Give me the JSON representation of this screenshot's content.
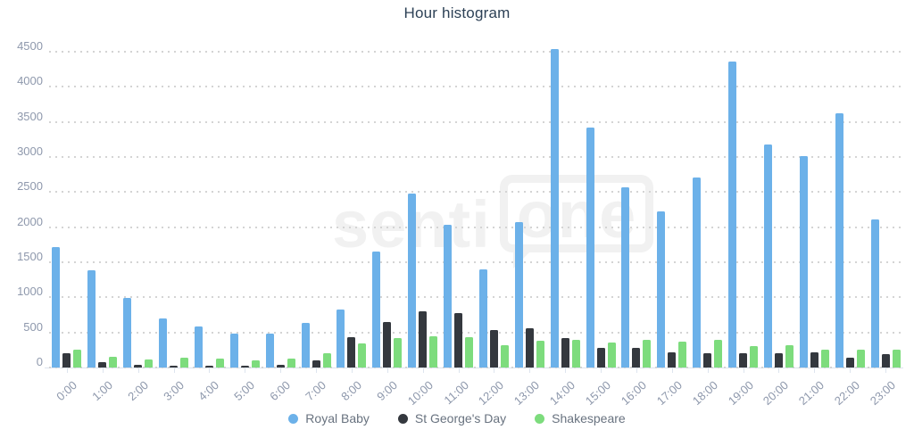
{
  "title": "Hour histogram",
  "watermark": {
    "left": "senti",
    "boxed": "one"
  },
  "colors": {
    "background": "#ffffff",
    "title_text": "#2d4156",
    "axis_text": "#8e98ac",
    "legend_text": "#68727f",
    "gridline": "#d4d4d4",
    "axis_line": "#dde4ee",
    "watermark": "#f1f1f1",
    "royal_baby": "#6cb1e9",
    "st_georges_day": "#34383e",
    "shakespeare": "#7ddc7d"
  },
  "chart_data": {
    "type": "bar",
    "title": "Hour histogram",
    "xlabel": "",
    "ylabel": "",
    "grid": "horizontal-dotted",
    "legend_position": "bottom",
    "ylim": [
      0,
      4500
    ],
    "y_ticks": [
      0,
      500,
      1000,
      1500,
      2000,
      2500,
      3000,
      3500,
      4000,
      4500
    ],
    "categories": [
      "0:00",
      "1:00",
      "2:00",
      "3:00",
      "4:00",
      "5:00",
      "6:00",
      "7:00",
      "8:00",
      "9:00",
      "10:00",
      "11:00",
      "12:00",
      "13:00",
      "14:00",
      "15:00",
      "16:00",
      "17:00",
      "18:00",
      "19:00",
      "20:00",
      "21:00",
      "22:00",
      "23:00"
    ],
    "series": [
      {
        "name": "Royal Baby",
        "color": "#6cb1e9",
        "values": [
          1720,
          1390,
          990,
          700,
          580,
          480,
          490,
          640,
          830,
          1650,
          2480,
          2040,
          1400,
          2070,
          4540,
          3420,
          2570,
          2230,
          2710,
          4360,
          3180,
          3010,
          3620,
          2110
        ]
      },
      {
        "name": "St George's Day",
        "color": "#34383e",
        "values": [
          200,
          80,
          40,
          25,
          20,
          20,
          35,
          100,
          430,
          650,
          800,
          770,
          540,
          560,
          420,
          280,
          280,
          215,
          200,
          210,
          200,
          220,
          145,
          190
        ]
      },
      {
        "name": "Shakespeare",
        "color": "#7ddc7d",
        "values": [
          260,
          150,
          115,
          145,
          125,
          105,
          125,
          200,
          340,
          420,
          440,
          430,
          320,
          380,
          400,
          360,
          390,
          370,
          390,
          310,
          320,
          250,
          260,
          255
        ]
      }
    ]
  }
}
